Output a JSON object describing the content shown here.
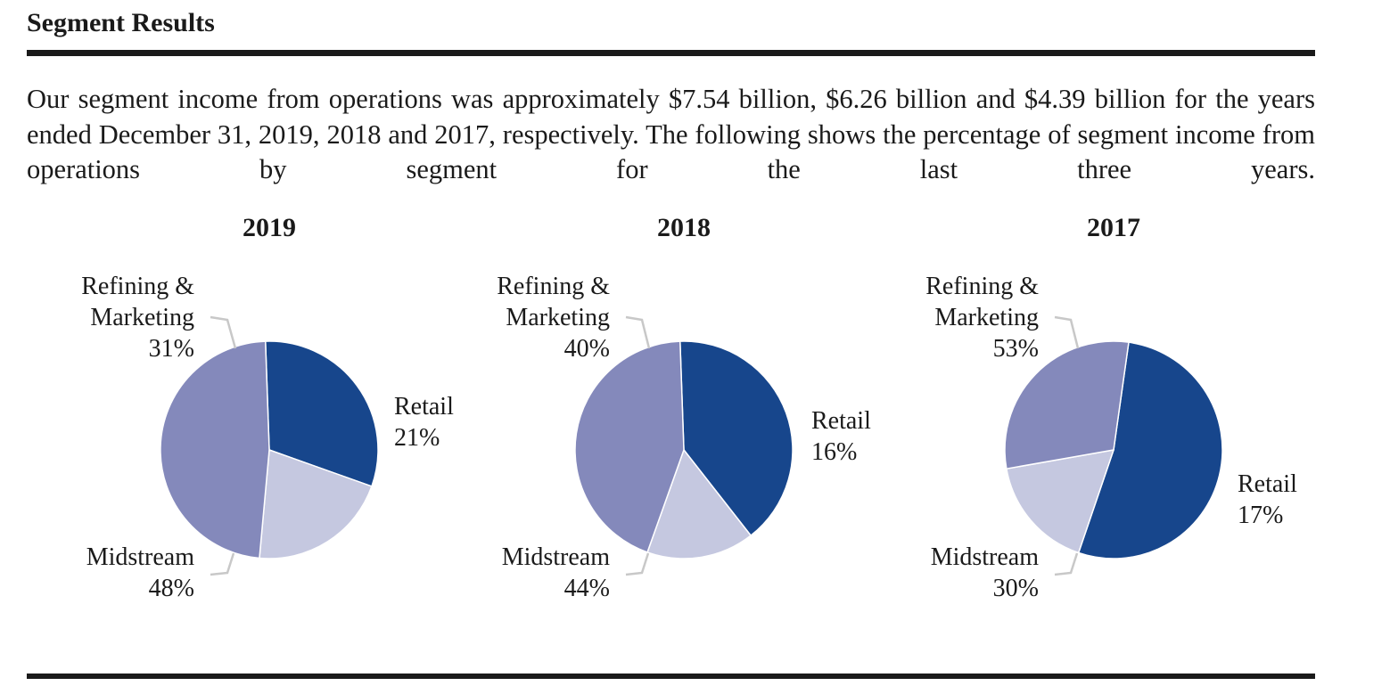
{
  "section": {
    "heading": "Segment Results",
    "paragraph": "Our segment income from operations was approximately $7.54 billion, $6.26 billion and $4.39 billion for the years ended December 31, 2019, 2018 and 2017, respectively. The following shows the percentage of segment income from operations by segment for the last three years."
  },
  "colors": {
    "Refining & Marketing": "#17468c",
    "Midstream": "#8489bb",
    "Retail": "#c5c8e0",
    "text": "#1a1a1a",
    "leader_line": "#c8c8c8"
  },
  "chart_data": [
    {
      "type": "pie",
      "title": "2019",
      "slices": [
        {
          "label": "Refining & Marketing",
          "value": 31,
          "label_lines": [
            "Refining &",
            "Marketing",
            "31%"
          ]
        },
        {
          "label": "Retail",
          "value": 21,
          "label_lines": [
            "Retail",
            "21%"
          ]
        },
        {
          "label": "Midstream",
          "value": 48,
          "label_lines": [
            "Midstream",
            "48%"
          ]
        }
      ]
    },
    {
      "type": "pie",
      "title": "2018",
      "slices": [
        {
          "label": "Refining & Marketing",
          "value": 40,
          "label_lines": [
            "Refining &",
            "Marketing",
            "40%"
          ]
        },
        {
          "label": "Retail",
          "value": 16,
          "label_lines": [
            "Retail",
            "16%"
          ]
        },
        {
          "label": "Midstream",
          "value": 44,
          "label_lines": [
            "Midstream",
            "44%"
          ]
        }
      ]
    },
    {
      "type": "pie",
      "title": "2017",
      "slices": [
        {
          "label": "Refining & Marketing",
          "value": 53,
          "label_lines": [
            "Refining &",
            "Marketing",
            "53%"
          ]
        },
        {
          "label": "Retail",
          "value": 17,
          "label_lines": [
            "Retail",
            "17%"
          ]
        },
        {
          "label": "Midstream",
          "value": 30,
          "label_lines": [
            "Midstream",
            "30%"
          ]
        }
      ]
    }
  ]
}
